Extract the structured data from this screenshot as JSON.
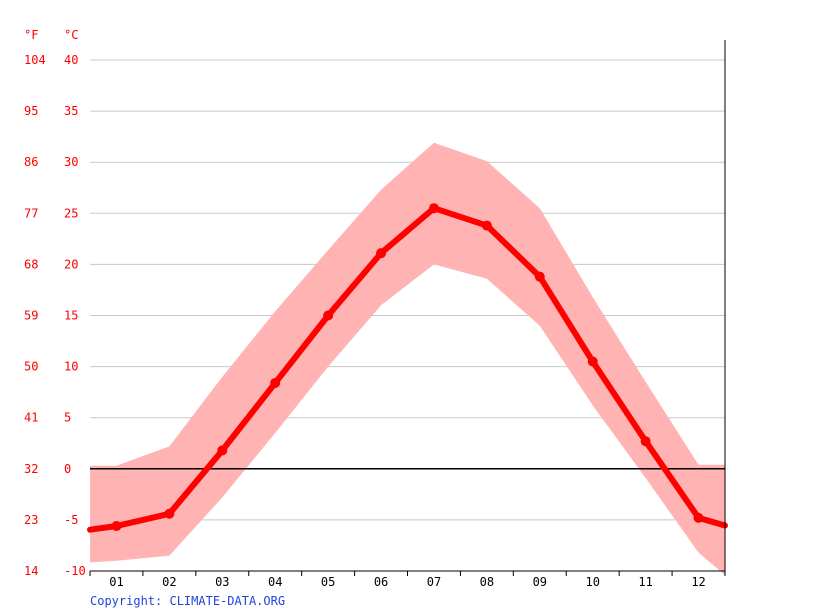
{
  "chart_data": {
    "type": "line",
    "unit_labels": {
      "fahrenheit": "°F",
      "celsius": "°C"
    },
    "categories": [
      "01",
      "02",
      "03",
      "04",
      "05",
      "06",
      "07",
      "08",
      "09",
      "10",
      "11",
      "12"
    ],
    "celsius_ticks": [
      "40",
      "35",
      "30",
      "25",
      "20",
      "15",
      "10",
      "5",
      "0",
      "-5",
      "-10"
    ],
    "fahrenheit_ticks": [
      "104",
      "95",
      "86",
      "77",
      "68",
      "59",
      "50",
      "41",
      "32",
      "23",
      "14"
    ],
    "ylim": [
      -10,
      40
    ],
    "grid": true,
    "series": [
      {
        "role": "mean",
        "values": [
          -5.6,
          -4.4,
          1.8,
          8.4,
          15.0,
          21.1,
          25.5,
          23.8,
          18.8,
          10.5,
          2.7,
          -4.8
        ]
      },
      {
        "role": "max",
        "values": [
          0.3,
          2.2,
          9.0,
          15.4,
          21.4,
          27.3,
          31.9,
          30.1,
          25.5,
          16.8,
          8.5,
          0.4
        ]
      },
      {
        "role": "min",
        "values": [
          -9.0,
          -8.5,
          -2.8,
          3.5,
          10.0,
          16.0,
          20.0,
          18.6,
          14.0,
          6.2,
          -0.9,
          -8.2
        ]
      }
    ],
    "colors": {
      "line": "#ff0000",
      "band": "#ffb3b3",
      "grid": "#c8c8c8",
      "axis": "#000000",
      "label": "#ff0000"
    }
  },
  "footer": {
    "copyright": "Copyright: CLIMATE-DATA.ORG"
  }
}
